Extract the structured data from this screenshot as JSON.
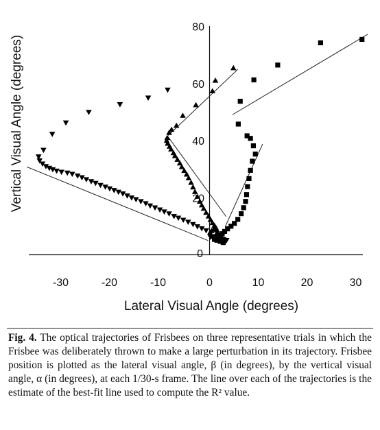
{
  "caption": {
    "label": "Fig. 4.",
    "text": "The optical trajectories of Frisbees on three representative trials in which the Frisbee was deliberately thrown to make a large perturbation in its trajectory. Frisbee position is plotted as the lateral visual angle, β (in degrees), by the vertical visual angle, α (in degrees), at each 1/30-s frame. The line over each of the trajectories is the estimate of the best-fit line used to compute the R² value."
  },
  "chart_data": {
    "type": "scatter",
    "title": "",
    "xlabel": "Lateral Visual Angle (degrees)",
    "ylabel": "Vertical Visual Angle (degrees)",
    "xlim": [
      -36,
      33
    ],
    "ylim": [
      0,
      80
    ],
    "xticks": [
      -30,
      -20,
      -10,
      0,
      10,
      20,
      30
    ],
    "yticks": [
      0,
      20,
      40,
      60,
      80
    ],
    "grid": false,
    "series": [
      {
        "marker": "triangle-down",
        "points": [
          [
            -8.6,
            57.8
          ],
          [
            -12.6,
            55.0
          ],
          [
            -18.4,
            52.7
          ],
          [
            -24.8,
            50.0
          ],
          [
            -29.5,
            46.3
          ],
          [
            -32.3,
            42.3
          ],
          [
            -34.1,
            36.7
          ],
          [
            -35.1,
            34.4
          ],
          [
            -34.9,
            33.0
          ],
          [
            -34.3,
            31.9
          ],
          [
            -33.6,
            31.0
          ],
          [
            -32.9,
            30.4
          ],
          [
            -32.2,
            29.9
          ],
          [
            -31.4,
            29.4
          ],
          [
            -30.4,
            29.0
          ],
          [
            -29.2,
            28.7
          ],
          [
            -28.2,
            28.3
          ],
          [
            -27.1,
            27.7
          ],
          [
            -26.2,
            27.1
          ],
          [
            -25.3,
            26.4
          ],
          [
            -24.3,
            25.7
          ],
          [
            -23.4,
            25.1
          ],
          [
            -22.4,
            24.4
          ],
          [
            -21.4,
            23.8
          ],
          [
            -20.5,
            23.2
          ],
          [
            -19.6,
            22.6
          ],
          [
            -18.7,
            22.0
          ],
          [
            -17.8,
            21.4
          ],
          [
            -16.9,
            20.7
          ],
          [
            -16.0,
            20.0
          ],
          [
            -15.1,
            19.4
          ],
          [
            -14.1,
            18.7
          ],
          [
            -13.1,
            18.0
          ],
          [
            -12.2,
            17.2
          ],
          [
            -11.2,
            16.5
          ],
          [
            -10.2,
            15.8
          ],
          [
            -9.3,
            15.1
          ],
          [
            -8.3,
            14.4
          ],
          [
            -7.3,
            13.5
          ],
          [
            -6.4,
            12.9
          ],
          [
            -5.4,
            12.2
          ],
          [
            -4.4,
            11.5
          ],
          [
            -3.4,
            10.7
          ],
          [
            -2.5,
            9.9
          ],
          [
            -1.6,
            9.2
          ],
          [
            -0.7,
            8.5
          ],
          [
            0.2,
            6.2
          ],
          [
            0.8,
            5.7
          ],
          [
            1.6,
            5.3
          ],
          [
            2.3,
            4.8
          ],
          [
            3.0,
            4.7
          ],
          [
            3.5,
            5.1
          ],
          [
            3.3,
            4.9
          ],
          [
            2.9,
            5.4
          ],
          [
            2.5,
            5.6
          ],
          [
            2.1,
            5.7
          ]
        ],
        "fit_line": [
          [
            -37.5,
            30.8
          ],
          [
            -0.3,
            5.0
          ]
        ]
      },
      {
        "marker": "triangle-up",
        "points": [
          [
            4.9,
            65.5
          ],
          [
            1.2,
            61.1
          ],
          [
            0.6,
            57.4
          ],
          [
            -2.8,
            52.5
          ],
          [
            -5.5,
            48.8
          ],
          [
            -6.8,
            45.3
          ],
          [
            -7.8,
            43.9
          ],
          [
            -8.3,
            42.8
          ],
          [
            -8.7,
            41.0
          ],
          [
            -8.8,
            40.0
          ],
          [
            -8.6,
            39.0
          ],
          [
            -8.2,
            38.0
          ],
          [
            -7.9,
            37.0
          ],
          [
            -7.4,
            35.7
          ],
          [
            -7.1,
            34.7
          ],
          [
            -6.6,
            33.4
          ],
          [
            -6.1,
            32.1
          ],
          [
            -5.7,
            30.8
          ],
          [
            -5.2,
            29.5
          ],
          [
            -4.7,
            28.2
          ],
          [
            -4.3,
            26.9
          ],
          [
            -3.8,
            25.3
          ],
          [
            -3.4,
            23.7
          ],
          [
            -3.0,
            22.1
          ],
          [
            -2.5,
            20.4
          ],
          [
            -2.0,
            18.7
          ],
          [
            -1.6,
            17.4
          ],
          [
            -1.2,
            16.2
          ],
          [
            -0.7,
            14.8
          ],
          [
            -0.2,
            13.5
          ],
          [
            0.2,
            12.3
          ],
          [
            0.6,
            11.2
          ],
          [
            1.0,
            10.3
          ],
          [
            1.3,
            9.5
          ],
          [
            1.5,
            8.7
          ],
          [
            1.6,
            7.9
          ],
          [
            1.5,
            7.2
          ],
          [
            1.2,
            6.6
          ],
          [
            0.9,
            6.4
          ],
          [
            0.5,
            6.6
          ],
          [
            0.3,
            7.2
          ],
          [
            0.1,
            7.8
          ],
          [
            0.4,
            8.4
          ],
          [
            0.8,
            8.9
          ],
          [
            1.1,
            9.4
          ]
        ],
        "fit_line": [
          [
            -8.7,
            41.8
          ],
          [
            3.4,
            13.4
          ]
        ],
        "fit_line_2": [
          [
            -8.5,
            41.8
          ],
          [
            5.8,
            65.0
          ]
        ]
      },
      {
        "marker": "square",
        "points": [
          [
            31.3,
            75.5
          ],
          [
            22.8,
            74.3
          ],
          [
            14.0,
            66.5
          ],
          [
            9.1,
            61.3
          ],
          [
            6.3,
            53.8
          ],
          [
            5.9,
            45.8
          ],
          [
            7.7,
            41.7
          ],
          [
            8.4,
            40.8
          ],
          [
            9.0,
            38.2
          ],
          [
            9.4,
            35.3
          ],
          [
            8.8,
            32.8
          ],
          [
            8.4,
            29.6
          ],
          [
            8.1,
            26.7
          ],
          [
            7.8,
            23.9
          ],
          [
            7.6,
            21.1
          ],
          [
            7.4,
            18.7
          ],
          [
            7.0,
            16.5
          ],
          [
            6.5,
            14.4
          ],
          [
            5.8,
            12.4
          ],
          [
            5.1,
            11.0
          ],
          [
            4.4,
            10.0
          ],
          [
            3.7,
            9.1
          ],
          [
            3.1,
            8.2
          ],
          [
            2.6,
            7.4
          ],
          [
            2.2,
            6.8
          ],
          [
            1.8,
            6.2
          ],
          [
            1.4,
            5.6
          ],
          [
            1.0,
            5.4
          ],
          [
            1.5,
            5.1
          ],
          [
            2.2,
            4.7
          ],
          [
            2.8,
            4.3
          ]
        ],
        "fit_line": [
          [
            4.7,
            49.1
          ],
          [
            32.5,
            77.3
          ]
        ],
        "fit_line_2": [
          [
            3.2,
            9.8
          ],
          [
            10.9,
            38.8
          ]
        ]
      }
    ]
  }
}
